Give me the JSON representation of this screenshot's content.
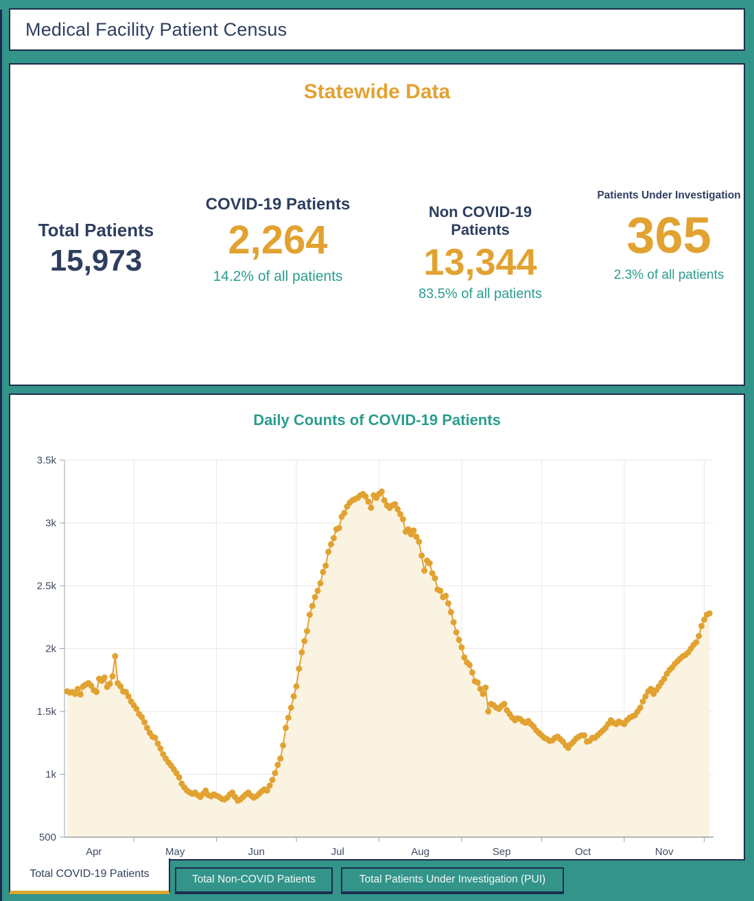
{
  "app": {
    "title": "Medical Facility Patient Census"
  },
  "statewide": {
    "title": "Statewide Data",
    "stats": [
      {
        "label": "Total Patients",
        "value": "15,973",
        "subtext": ""
      },
      {
        "label": "COVID-19 Patients",
        "value": "2,264",
        "subtext": "14.2% of all patients"
      },
      {
        "label": "Non COVID-19 Patients",
        "value": "13,344",
        "subtext": "83.5% of all patients"
      },
      {
        "label": "Patients Under Investigation",
        "value": "365",
        "subtext": "2.3% of all patients"
      }
    ]
  },
  "chart": {
    "title": "Daily Counts of COVID-19 Patients"
  },
  "chart_data": {
    "type": "line",
    "title": "Daily Counts of COVID-19 Patients",
    "x": {
      "start_date": "Apr 6",
      "cadence": "daily",
      "end_date": "Dec 3"
    },
    "x_tick_labels": [
      "Apr",
      "May",
      "Jun",
      "Jul",
      "Aug",
      "Sep",
      "Oct",
      "Nov"
    ],
    "y_tick_labels": [
      "500",
      "1k",
      "1.5k",
      "2k",
      "2.5k",
      "3k",
      "3.5k"
    ],
    "ylim": [
      500,
      3500
    ],
    "grid": true,
    "legend": "none",
    "line_color": "#E2A231",
    "fill_color": "#FAF3E1",
    "marker_size": 4.5,
    "series": [
      {
        "name": "Total COVID-19 Patients",
        "values": [
          1660,
          1650,
          1655,
          1640,
          1680,
          1635,
          1700,
          1715,
          1725,
          1705,
          1670,
          1655,
          1760,
          1745,
          1770,
          1695,
          1720,
          1780,
          1940,
          1725,
          1700,
          1660,
          1655,
          1620,
          1580,
          1550,
          1520,
          1480,
          1455,
          1415,
          1370,
          1330,
          1300,
          1290,
          1245,
          1205,
          1160,
          1125,
          1095,
          1070,
          1040,
          1010,
          975,
          925,
          895,
          870,
          855,
          845,
          855,
          835,
          820,
          845,
          870,
          835,
          825,
          840,
          830,
          820,
          805,
          800,
          815,
          840,
          855,
          820,
          790,
          800,
          820,
          840,
          855,
          830,
          815,
          825,
          845,
          865,
          880,
          870,
          910,
          955,
          1010,
          1075,
          1125,
          1230,
          1370,
          1450,
          1530,
          1620,
          1700,
          1840,
          1970,
          2060,
          2140,
          2270,
          2340,
          2410,
          2460,
          2520,
          2610,
          2660,
          2770,
          2830,
          2880,
          2950,
          2960,
          3050,
          3080,
          3130,
          3160,
          3180,
          3190,
          3200,
          3220,
          3230,
          3210,
          3170,
          3120,
          3220,
          3200,
          3230,
          3250,
          3180,
          3140,
          3120,
          3140,
          3150,
          3110,
          3070,
          3030,
          2930,
          2950,
          2910,
          2940,
          2890,
          2850,
          2740,
          2620,
          2700,
          2680,
          2600,
          2560,
          2470,
          2460,
          2410,
          2420,
          2360,
          2290,
          2210,
          2130,
          2070,
          2010,
          1930,
          1890,
          1870,
          1810,
          1740,
          1730,
          1680,
          1640,
          1690,
          1500,
          1560,
          1550,
          1530,
          1520,
          1545,
          1560,
          1510,
          1480,
          1450,
          1430,
          1445,
          1440,
          1420,
          1410,
          1425,
          1400,
          1380,
          1350,
          1330,
          1310,
          1290,
          1280,
          1265,
          1270,
          1290,
          1300,
          1280,
          1260,
          1230,
          1210,
          1240,
          1260,
          1285,
          1300,
          1310,
          1310,
          1260,
          1265,
          1290,
          1290,
          1310,
          1330,
          1350,
          1370,
          1400,
          1430,
          1410,
          1400,
          1420,
          1410,
          1400,
          1430,
          1450,
          1460,
          1470,
          1500,
          1530,
          1580,
          1620,
          1660,
          1680,
          1640,
          1670,
          1700,
          1730,
          1760,
          1800,
          1830,
          1850,
          1880,
          1900,
          1920,
          1940,
          1950,
          1970,
          2000,
          2030,
          2050,
          2100,
          2180,
          2230,
          2270,
          2280
        ]
      }
    ]
  },
  "tabs": [
    {
      "label": "Total COVID-19 Patients",
      "active": true
    },
    {
      "label": "Total Non-COVID Patients",
      "active": false
    },
    {
      "label": "Total Patients Under Investigation (PUI)",
      "active": false
    }
  ],
  "colors": {
    "teal": "#33948A",
    "teal_text": "#2A9D8E",
    "navy": "#2D3E5F",
    "navy_dark": "#1D2C4E",
    "orange": "#E2A231",
    "gold": "#DCA72F",
    "grid": "#E7E7E7",
    "axis": "#9AA0A8",
    "tick_label": "#3F4B63"
  }
}
